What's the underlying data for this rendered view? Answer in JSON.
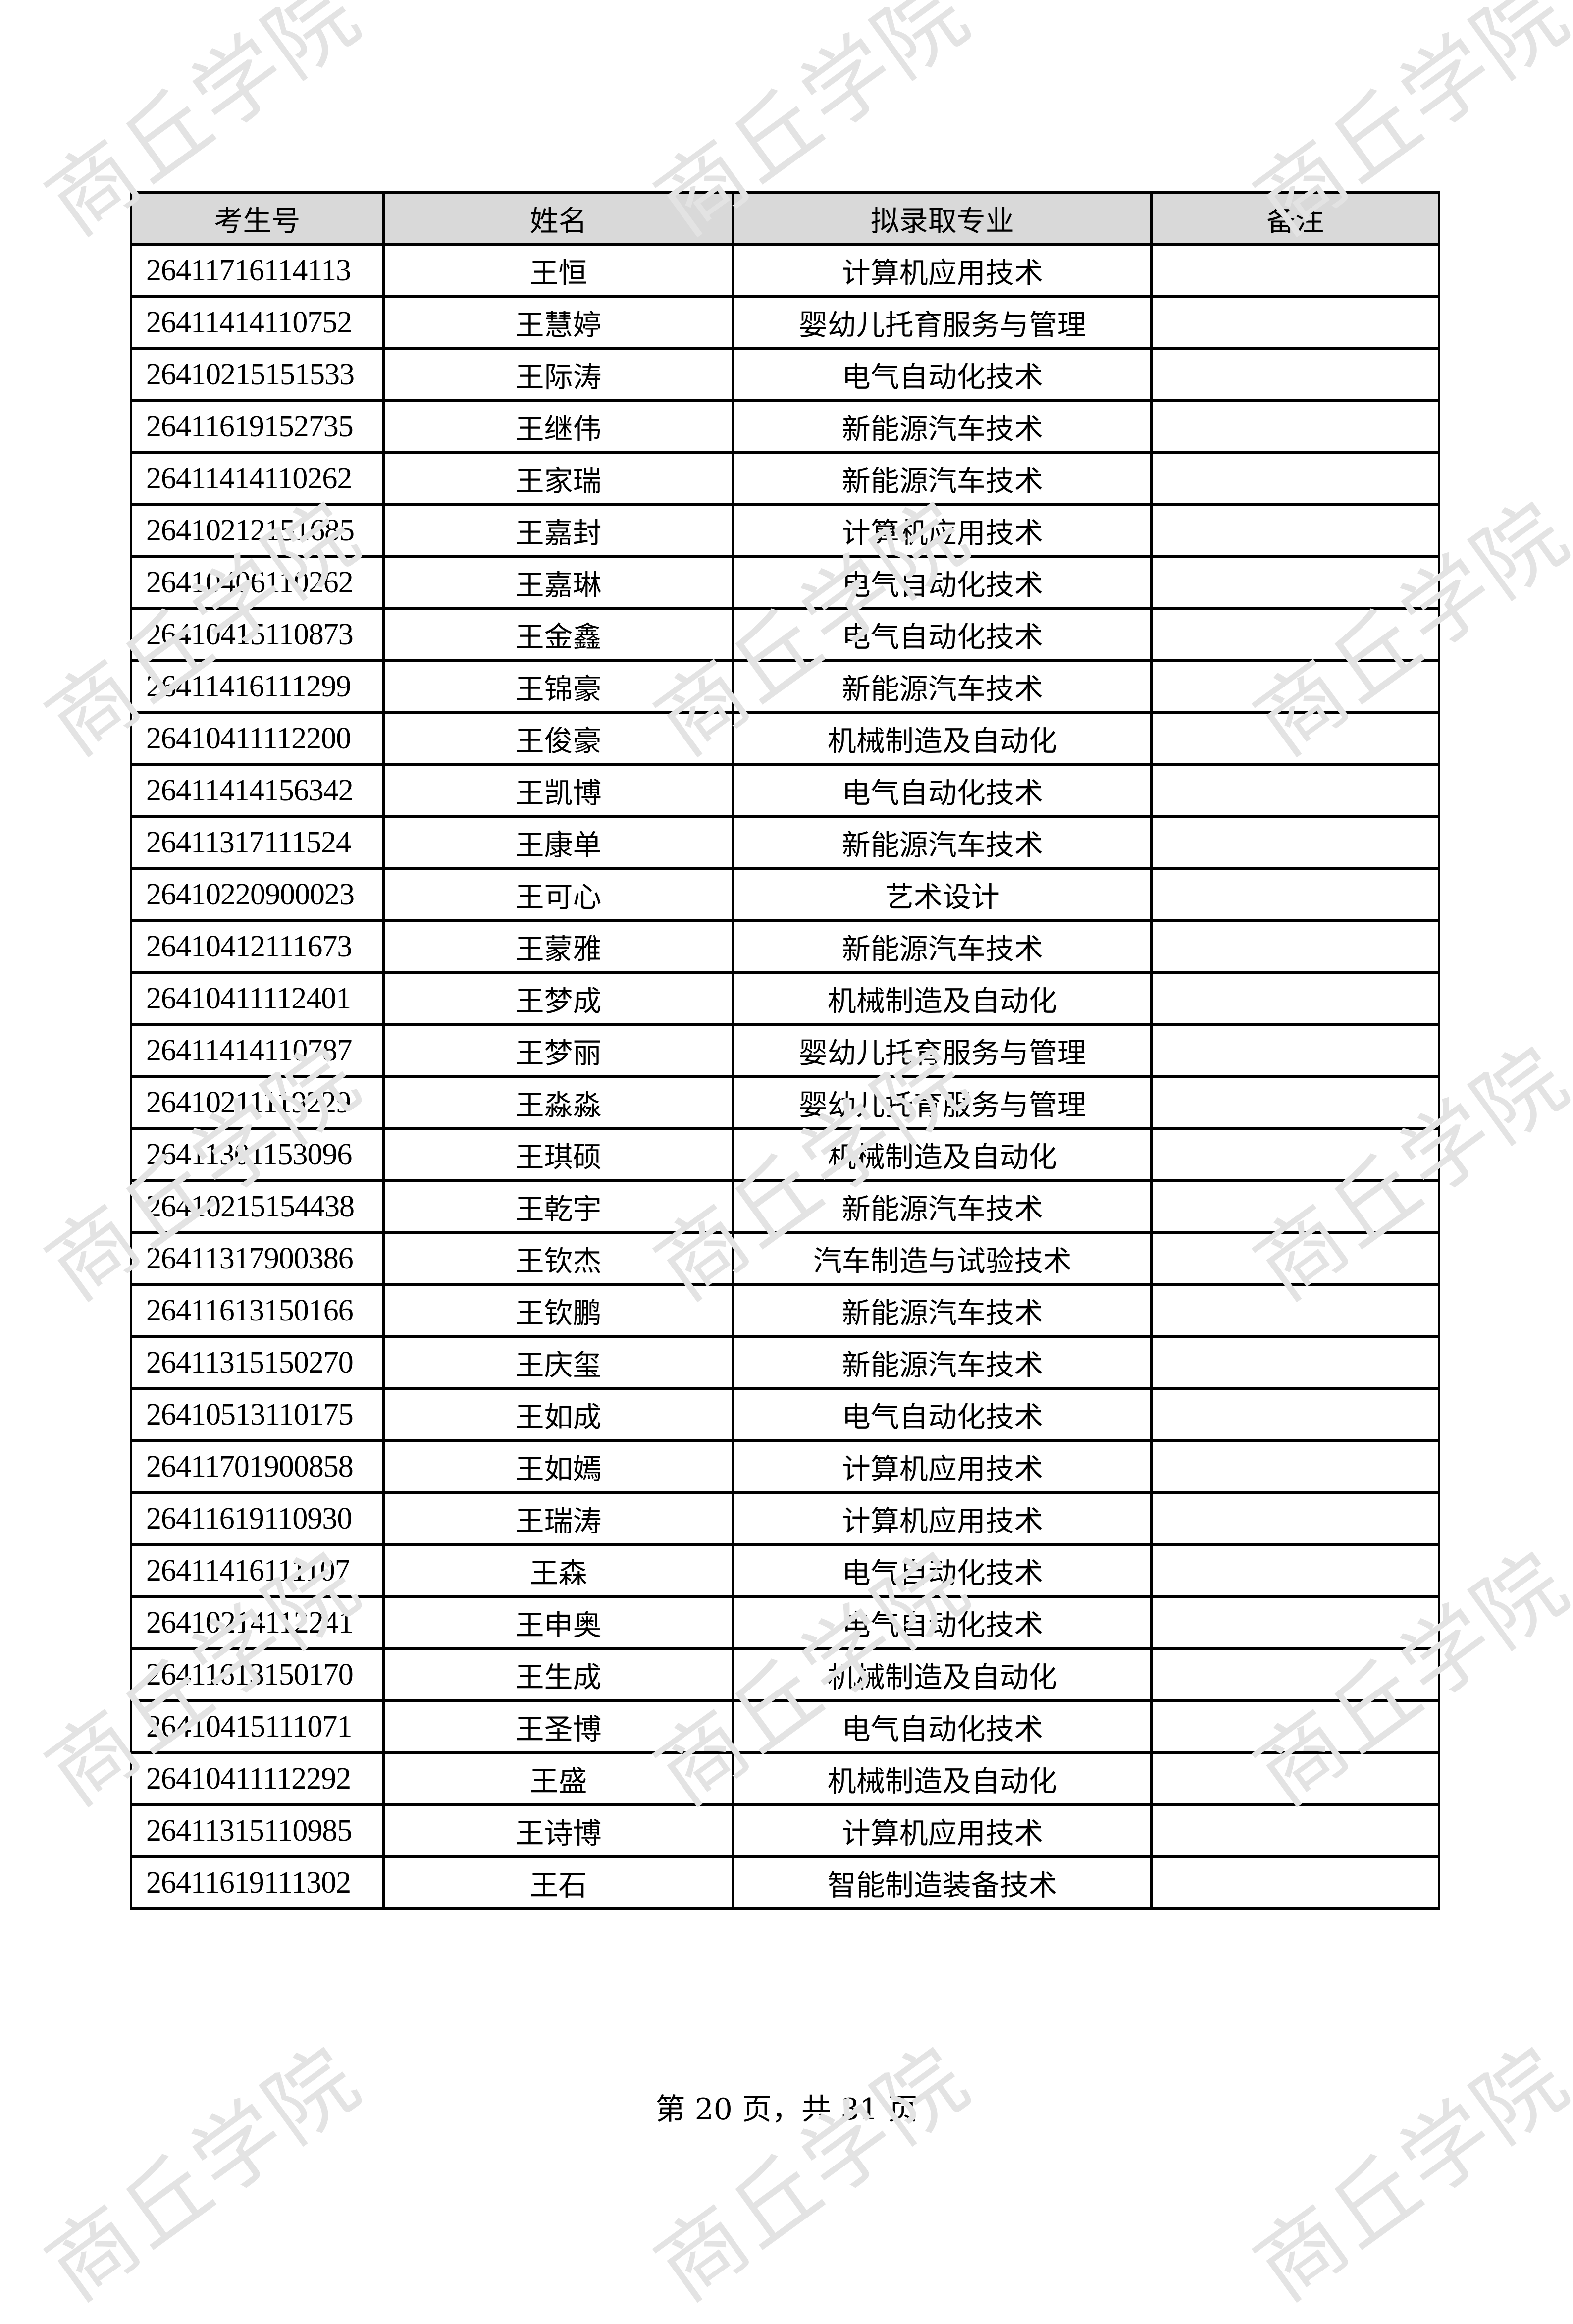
{
  "watermark": "商丘学院",
  "table": {
    "headers": [
      "考生号",
      "姓名",
      "拟录取专业",
      "备注"
    ],
    "rows": [
      [
        "26411716114113",
        "王恒",
        "计算机应用技术",
        ""
      ],
      [
        "26411414110752",
        "王慧婷",
        "婴幼儿托育服务与管理",
        ""
      ],
      [
        "26410215151533",
        "王际涛",
        "电气自动化技术",
        ""
      ],
      [
        "26411619152735",
        "王继伟",
        "新能源汽车技术",
        ""
      ],
      [
        "26411414110262",
        "王家瑞",
        "新能源汽车技术",
        ""
      ],
      [
        "26410212151685",
        "王嘉封",
        "计算机应用技术",
        ""
      ],
      [
        "26410406110262",
        "王嘉琳",
        "电气自动化技术",
        ""
      ],
      [
        "26410415110873",
        "王金鑫",
        "电气自动化技术",
        ""
      ],
      [
        "26411416111299",
        "王锦豪",
        "新能源汽车技术",
        ""
      ],
      [
        "26410411112200",
        "王俊豪",
        "机械制造及自动化",
        ""
      ],
      [
        "26411414156342",
        "王凯博",
        "电气自动化技术",
        ""
      ],
      [
        "26411317111524",
        "王康单",
        "新能源汽车技术",
        ""
      ],
      [
        "26410220900023",
        "王可心",
        "艺术设计",
        ""
      ],
      [
        "26410412111673",
        "王蒙雅",
        "新能源汽车技术",
        ""
      ],
      [
        "26410411112401",
        "王梦成",
        "机械制造及自动化",
        ""
      ],
      [
        "26411414110787",
        "王梦丽",
        "婴幼儿托育服务与管理",
        ""
      ],
      [
        "26410211119229",
        "王淼淼",
        "婴幼儿托育服务与管理",
        ""
      ],
      [
        "26411301153096",
        "王琪硕",
        "机械制造及自动化",
        ""
      ],
      [
        "26410215154438",
        "王乾宇",
        "新能源汽车技术",
        ""
      ],
      [
        "26411317900386",
        "王钦杰",
        "汽车制造与试验技术",
        ""
      ],
      [
        "26411613150166",
        "王钦鹏",
        "新能源汽车技术",
        ""
      ],
      [
        "26411315150270",
        "王庆玺",
        "新能源汽车技术",
        ""
      ],
      [
        "26410513110175",
        "王如成",
        "电气自动化技术",
        ""
      ],
      [
        "26411701900858",
        "王如嫣",
        "计算机应用技术",
        ""
      ],
      [
        "26411619110930",
        "王瑞涛",
        "计算机应用技术",
        ""
      ],
      [
        "26411416111107",
        "王森",
        "电气自动化技术",
        ""
      ],
      [
        "26410214112241",
        "王申奥",
        "电气自动化技术",
        ""
      ],
      [
        "26411613150170",
        "王生成",
        "机械制造及自动化",
        ""
      ],
      [
        "26410415111071",
        "王圣博",
        "电气自动化技术",
        ""
      ],
      [
        "26410411112292",
        "王盛",
        "机械制造及自动化",
        ""
      ],
      [
        "26411315110985",
        "王诗博",
        "计算机应用技术",
        ""
      ],
      [
        "26411619111302",
        "王石",
        "智能制造装备技术",
        ""
      ]
    ]
  },
  "footer": "第 20 页，共 31 页",
  "colors": {
    "header_bg": "#d9d9d9",
    "watermark": "#e3e3e3"
  }
}
